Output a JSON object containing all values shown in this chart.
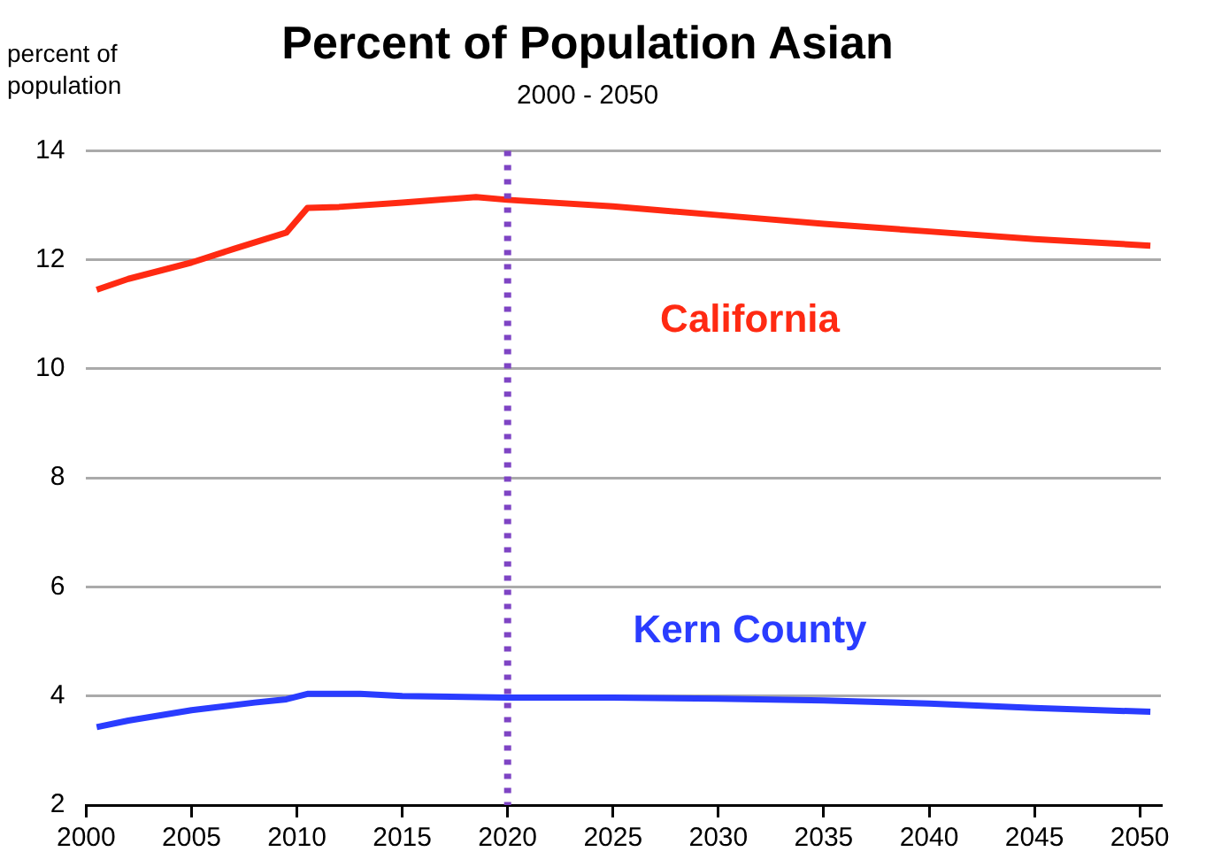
{
  "chart_data": {
    "type": "line",
    "title": "Percent of Population Asian",
    "subtitle": "2000 - 2050",
    "ylabel": "percent of\npopulation",
    "xlim": [
      2000,
      2051
    ],
    "xticks": [
      2000,
      2005,
      2010,
      2015,
      2020,
      2025,
      2030,
      2035,
      2040,
      2045,
      2050
    ],
    "ylim": [
      2,
      14
    ],
    "yticks": [
      2,
      4,
      6,
      8,
      10,
      12,
      14
    ],
    "grid": "y",
    "legend": false,
    "marker": "none",
    "line_style": "solid",
    "ref_lines": [
      {
        "axis": "x",
        "value": 2020,
        "label": null,
        "color": "#7e44c4",
        "line_style": "dotted"
      }
    ],
    "series": [
      {
        "name": "California",
        "color": "#ff2a12",
        "x": [
          2000.5,
          2002,
          2005,
          2007,
          2009.5,
          2010.5,
          2012,
          2015,
          2018.5,
          2020,
          2025,
          2030,
          2035,
          2040,
          2045,
          2050.5
        ],
        "values": [
          11.45,
          11.65,
          11.95,
          12.2,
          12.5,
          12.95,
          12.97,
          13.05,
          13.15,
          13.1,
          12.98,
          12.82,
          12.66,
          12.52,
          12.38,
          12.26
        ]
      },
      {
        "name": "Kern County",
        "color": "#2a3cff",
        "x": [
          2000.5,
          2002,
          2005,
          2008,
          2009.5,
          2010.5,
          2013,
          2015,
          2020,
          2025,
          2030,
          2035,
          2040,
          2045,
          2050.5
        ],
        "values": [
          3.43,
          3.55,
          3.74,
          3.88,
          3.94,
          4.04,
          4.04,
          4.0,
          3.97,
          3.97,
          3.95,
          3.92,
          3.86,
          3.78,
          3.71
        ]
      }
    ]
  }
}
